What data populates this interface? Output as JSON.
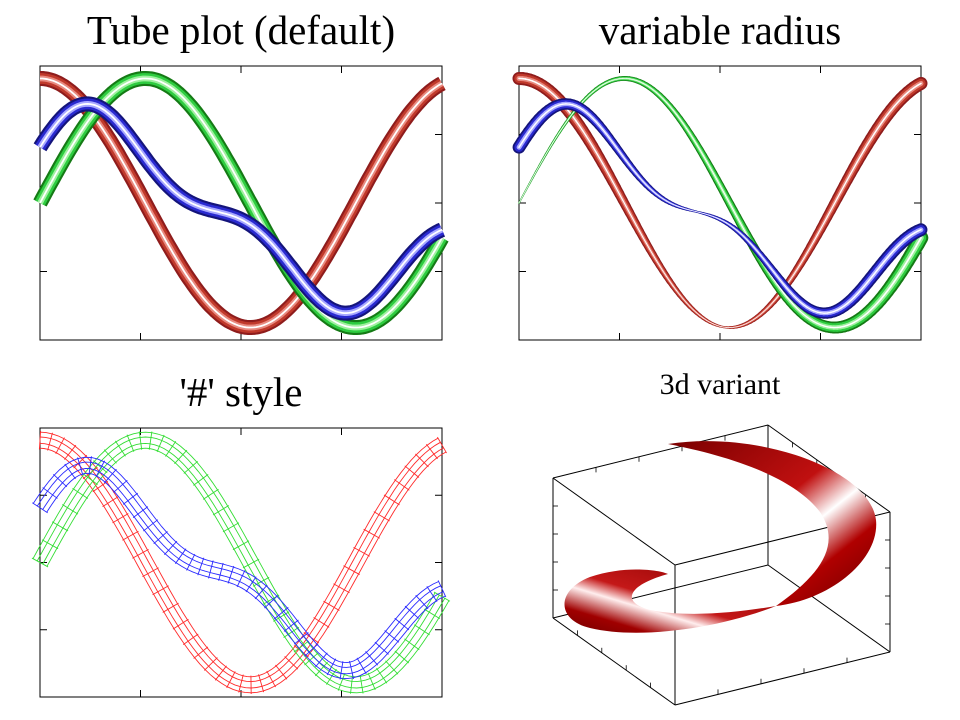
{
  "titles": {
    "tube_default": "Tube plot (default)",
    "variable_radius": "variable radius",
    "hash_style": "'#' style",
    "variant_3d": "3d variant"
  },
  "colors": {
    "red": "#c0392b",
    "green": "#2ecc40",
    "blue": "#2a2ad0",
    "hash_red": "#ff2a2a",
    "hash_green": "#33dd33",
    "hash_blue": "#2a2aff",
    "crescent": "#a00000"
  },
  "chart_data": [
    {
      "type": "line",
      "title": "Tube plot (default)",
      "x_range": [
        0,
        6
      ],
      "y_range": [
        -1.1,
        1.1
      ],
      "grid": false,
      "series": [
        {
          "color": "red",
          "function": "cos(x)",
          "x": [
            0,
            0.75,
            1.5,
            2.25,
            3,
            3.75,
            4.5,
            5.25,
            6
          ],
          "values": [
            1.0,
            0.73,
            0.07,
            -0.63,
            -0.99,
            -0.82,
            -0.21,
            0.51,
            0.96
          ]
        },
        {
          "color": "green",
          "function": "sin(x)",
          "x": [
            0,
            0.75,
            1.5,
            2.25,
            3,
            3.75,
            4.5,
            5.25,
            6
          ],
          "values": [
            0.0,
            0.68,
            1.0,
            0.78,
            0.14,
            -0.57,
            -0.98,
            -0.86,
            -0.28
          ]
        },
        {
          "color": "blue",
          "function": "decaying wave",
          "x": [
            0,
            0.75,
            1.5,
            2.25,
            3,
            3.75,
            4.5,
            5.25,
            6
          ],
          "values": [
            0.52,
            0.71,
            0.5,
            0.23,
            0.12,
            0.03,
            -0.27,
            -0.64,
            -0.53
          ]
        }
      ]
    },
    {
      "type": "line",
      "title": "variable radius",
      "x_range": [
        0,
        6
      ],
      "y_range": [
        -1.1,
        1.1
      ],
      "grid": false,
      "series": [
        {
          "color": "red",
          "function": "cos(x)"
        },
        {
          "color": "green",
          "function": "sin(x)"
        },
        {
          "color": "blue",
          "function": "decaying wave"
        }
      ]
    },
    {
      "type": "line",
      "title": "'#' style",
      "x_range": [
        0,
        6
      ],
      "y_range": [
        -1.1,
        1.1
      ],
      "grid": false,
      "series": [
        {
          "color": "red",
          "function": "cos(x)"
        },
        {
          "color": "green",
          "function": "sin(x)"
        },
        {
          "color": "blue",
          "function": "decaying wave"
        }
      ]
    },
    {
      "type": "surface",
      "title": "3d variant",
      "shape": "crescent tube inside bounding box"
    }
  ]
}
